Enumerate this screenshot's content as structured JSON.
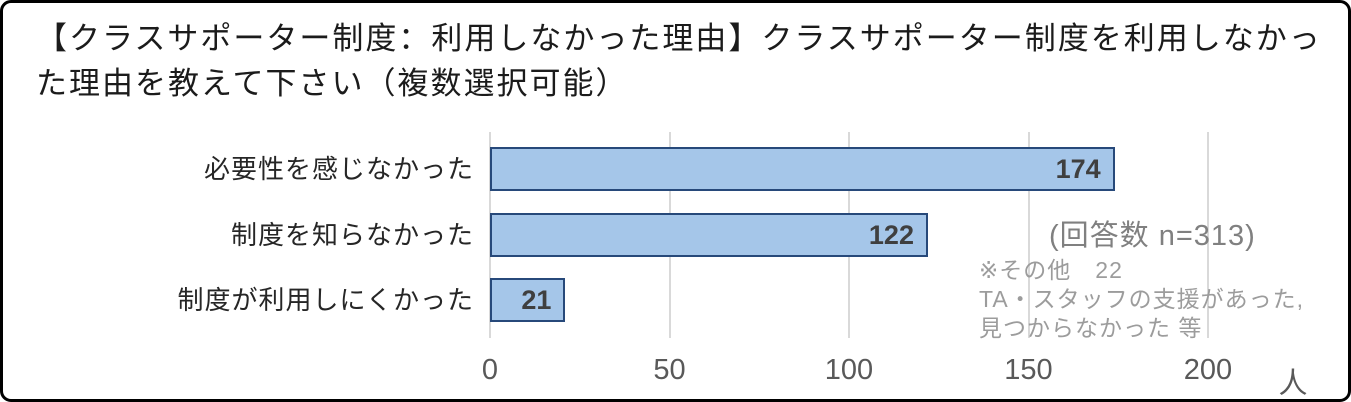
{
  "header": {
    "line1": "【クラスサポーター制度：利用しなかった理由】クラスサポーター制度を利用しなかっ",
    "line2": "た理由を教えて下さい（複数選択可能）"
  },
  "chart_data": {
    "type": "bar",
    "orientation": "horizontal",
    "title": "【クラスサポーター制度：利用しなかった理由】クラスサポーター制度を利用しなかった理由を教えて下さい（複数選択可能）",
    "categories": [
      "必要性を感じなかった",
      "制度を知らなかった",
      "制度が利用しにくかった"
    ],
    "values": [
      174,
      122,
      21
    ],
    "xlabel": "",
    "ylabel": "",
    "xlim": [
      0,
      200
    ],
    "xticks": [
      0,
      50,
      100,
      150,
      200
    ],
    "x_unit": "人",
    "grid": "vertical",
    "legend": "none",
    "data_labels": "inside-end"
  },
  "side_notes": {
    "response_count": "(回答数 n=313)",
    "other_note_lines": [
      "※その他　22",
      "TA・スタッフの支援があった,",
      "見つからなかった 等"
    ]
  },
  "colors": {
    "bar_fill": "#a5c6e9",
    "bar_border": "#27497a",
    "value_label": "#3f3f3f",
    "grid": "#d9d9d9",
    "axis_text": "#595959",
    "count_text": "#808080",
    "note_text": "#9c9c9c"
  }
}
